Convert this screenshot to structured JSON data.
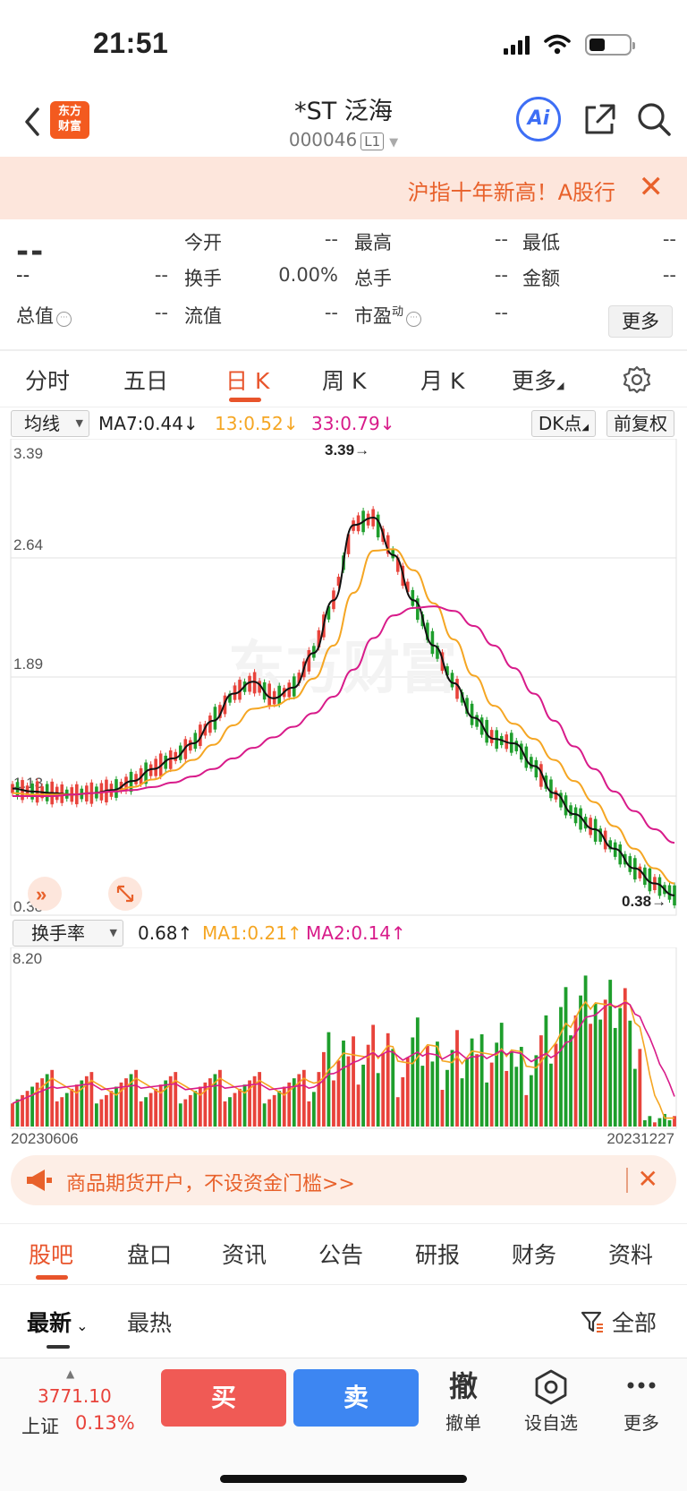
{
  "status": {
    "time": "21:51"
  },
  "header": {
    "logo_text_1": "东方",
    "logo_text_2": "财富",
    "title": "*ST 泛海",
    "code": "000046",
    "level": "L1",
    "ai_label": "Ai"
  },
  "banner": {
    "text": "沪指十年新高！A股行",
    "close": "✕"
  },
  "quote": {
    "price": "--",
    "change": "--",
    "change_pct": "--",
    "open_label": "今开",
    "open": "--",
    "high_label": "最高",
    "high": "--",
    "low_label": "最低",
    "low": "--",
    "turnover_label": "换手",
    "turnover": "0.00%",
    "volume_label": "总手",
    "volume": "--",
    "amount_label": "金额",
    "amount": "--",
    "mktcap_label": "总值",
    "mktcap": "--",
    "float_label": "流值",
    "float": "--",
    "pe_label": "市盈",
    "pe_sup": "动",
    "pe": "--",
    "more_label": "更多"
  },
  "period_tabs": [
    "分时",
    "五日",
    "日 K",
    "周 K",
    "月 K",
    "更多"
  ],
  "ma_bar": {
    "selector": "均线",
    "ma7": "MA7:0.44↓",
    "ma13": "13:0.52↓",
    "ma33": "33:0.79↓",
    "dk": "DK点",
    "adjust": "前复权"
  },
  "vol_bar": {
    "selector": "换手率",
    "value": "0.68↑",
    "ma1": "MA1:0.21↑",
    "ma2": "MA2:0.14↑"
  },
  "colors": {
    "up": "#e8433b",
    "down": "#1e9e2c",
    "ma7": "#111111",
    "ma13": "#f5a623",
    "ma33": "#d81b8a",
    "accent": "#e8542b"
  },
  "chart_data": [
    {
      "type": "candlestick",
      "y_ticks": [
        "3.39",
        "2.64",
        "1.89",
        "1.13",
        "0.38"
      ],
      "ylim": [
        0.38,
        3.39
      ],
      "max_label": "3.39→",
      "min_label": "0.38→",
      "series": [
        {
          "name": "MA7",
          "values": [
            1.15,
            1.13,
            1.12,
            1.11,
            1.12,
            1.14,
            1.2,
            1.28,
            1.35,
            1.45,
            1.6,
            1.78,
            1.86,
            1.75,
            1.82,
            2.05,
            2.4,
            2.9,
            2.95,
            2.7,
            2.4,
            2.1,
            1.85,
            1.62,
            1.48,
            1.45,
            1.3,
            1.12,
            0.98,
            0.88,
            0.75,
            0.62,
            0.52,
            0.44
          ]
        },
        {
          "name": "MA13",
          "values": [
            1.12,
            1.11,
            1.11,
            1.11,
            1.12,
            1.13,
            1.16,
            1.21,
            1.27,
            1.34,
            1.44,
            1.57,
            1.68,
            1.7,
            1.75,
            1.88,
            2.1,
            2.45,
            2.73,
            2.74,
            2.6,
            2.38,
            2.14,
            1.9,
            1.7,
            1.58,
            1.48,
            1.34,
            1.2,
            1.06,
            0.9,
            0.75,
            0.62,
            0.52
          ]
        },
        {
          "name": "MA33",
          "values": [
            1.1,
            1.1,
            1.1,
            1.11,
            1.12,
            1.13,
            1.14,
            1.16,
            1.19,
            1.23,
            1.28,
            1.35,
            1.42,
            1.49,
            1.56,
            1.65,
            1.76,
            1.94,
            2.15,
            2.3,
            2.35,
            2.36,
            2.33,
            2.23,
            2.1,
            1.95,
            1.78,
            1.6,
            1.43,
            1.28,
            1.13,
            1.0,
            0.88,
            0.79
          ]
        }
      ]
    },
    {
      "type": "bar",
      "y_ticks": [
        "8.20"
      ],
      "ylim": [
        0,
        8.2
      ],
      "x_start": "20230606",
      "x_end": "20231227"
    }
  ],
  "promo": {
    "text": "商品期货开户，不设资金门槛>>",
    "close": "✕"
  },
  "section_tabs": [
    "股吧",
    "盘口",
    "资讯",
    "公告",
    "研报",
    "财务",
    "资料"
  ],
  "sub_tabs": {
    "latest": "最新",
    "hot": "最热",
    "filter": "全部"
  },
  "bottom": {
    "index_value": "3771.10",
    "index_name": "上证",
    "index_change": "0.13%",
    "buy": "买",
    "sell": "卖",
    "cancel_glyph": "撤",
    "cancel": "撤单",
    "watch": "设自选",
    "more": "更多"
  }
}
